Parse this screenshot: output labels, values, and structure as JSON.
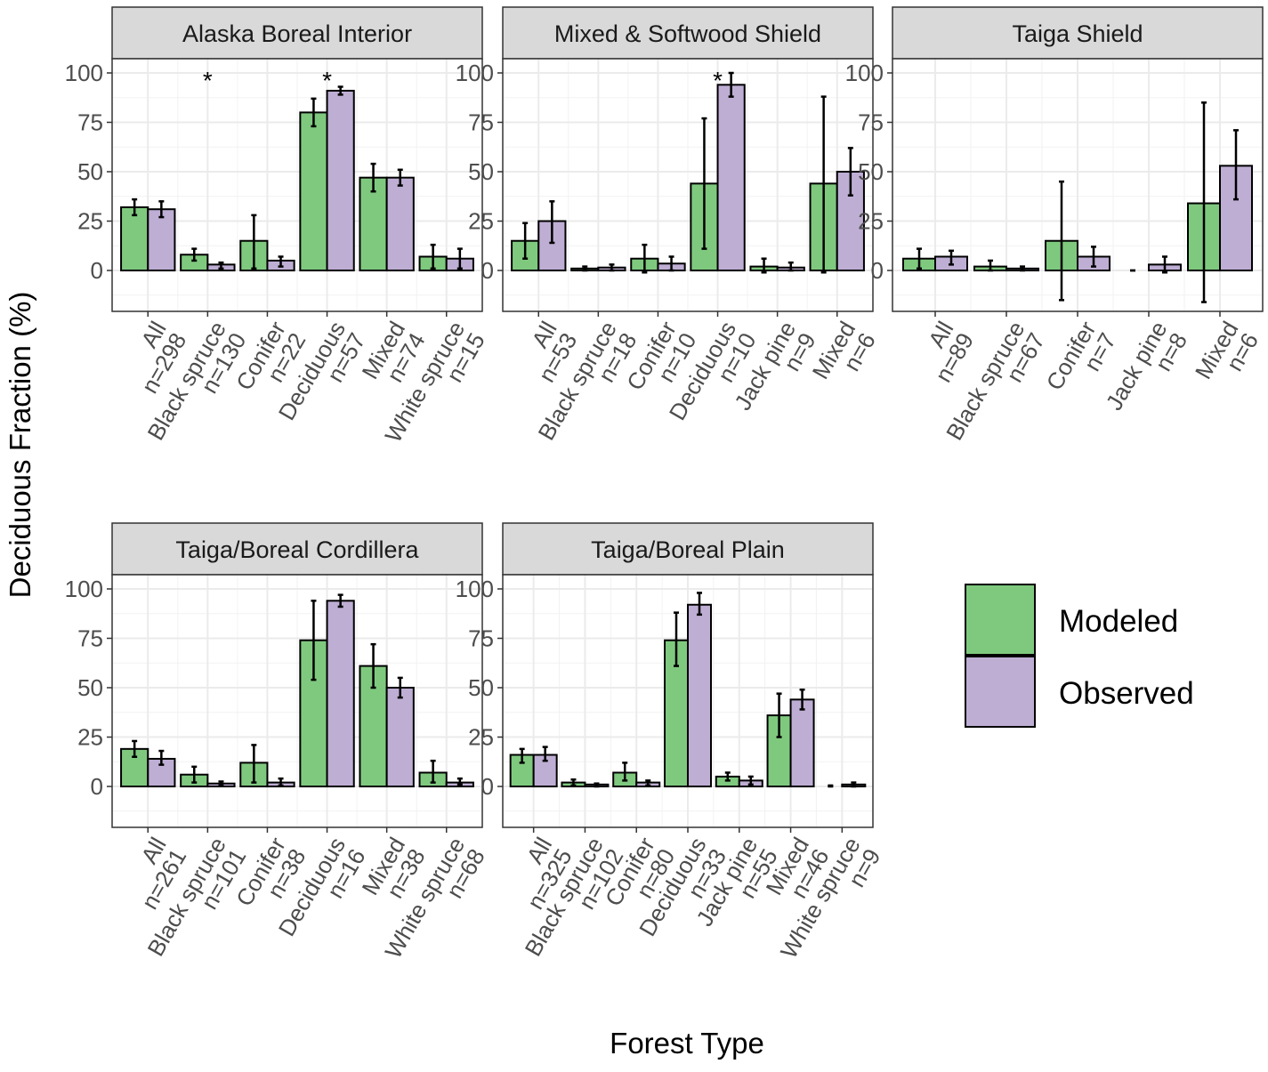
{
  "chart_data": {
    "type": "bar",
    "ylabel": "Deciduous Fraction (%)",
    "xlabel": "Forest Type",
    "ylim": [
      -20.7,
      107.2
    ],
    "yticks": [
      0,
      25,
      50,
      75,
      100
    ],
    "grid": true,
    "legend_placement": "right",
    "colors": {
      "Modeled": "#7FC97F",
      "Observed": "#BEAED4",
      "strip": "#D9D9D9"
    },
    "legend": [
      "Modeled",
      "Observed"
    ],
    "panels": [
      {
        "title": "Alaska Boreal Interior",
        "categories": [
          "All",
          "Black spruce",
          "Conifer",
          "Deciduous",
          "Mixed",
          "White spruce"
        ],
        "n": [
          "n=298",
          "n=130",
          "n=22",
          "n=57",
          "n=74",
          "n=15"
        ],
        "significant": [
          false,
          true,
          false,
          true,
          false,
          false
        ],
        "series": [
          {
            "name": "Modeled",
            "values": [
              32,
              8,
              15,
              80,
              47,
              7
            ],
            "lo": [
              28,
              5,
              1,
              73,
              40,
              1
            ],
            "hi": [
              36,
              11,
              28,
              87,
              54,
              13
            ]
          },
          {
            "name": "Observed",
            "values": [
              31,
              3,
              5,
              91,
              47,
              6
            ],
            "lo": [
              27,
              1,
              2,
              89,
              43,
              1
            ],
            "hi": [
              35,
              4,
              7,
              93,
              51,
              11
            ]
          }
        ]
      },
      {
        "title": "Mixed & Softwood Shield",
        "categories": [
          "All",
          "Black spruce",
          "Conifer",
          "Deciduous",
          "Jack pine",
          "Mixed"
        ],
        "n": [
          "n=53",
          "n=18",
          "n=10",
          "n=10",
          "n=9",
          "n=6"
        ],
        "significant": [
          false,
          false,
          false,
          true,
          false,
          false
        ],
        "series": [
          {
            "name": "Modeled",
            "values": [
              15,
              1,
              6,
              44,
              2,
              44
            ],
            "lo": [
              6,
              0,
              -1,
              11,
              -1,
              -1
            ],
            "hi": [
              24,
              2,
              13,
              77,
              6,
              88
            ]
          },
          {
            "name": "Observed",
            "values": [
              25,
              1.5,
              3.5,
              94,
              1.5,
              50
            ],
            "lo": [
              14,
              0,
              0,
              88,
              0,
              38
            ],
            "hi": [
              35,
              3,
              7,
              100,
              4,
              62
            ]
          }
        ]
      },
      {
        "title": "Taiga Shield",
        "categories": [
          "All",
          "Black spruce",
          "Conifer",
          "Jack pine",
          "Mixed"
        ],
        "n": [
          "n=89",
          "n=67",
          "n=7",
          "n=8",
          "n=6"
        ],
        "significant": [
          false,
          false,
          false,
          false,
          false
        ],
        "series": [
          {
            "name": "Modeled",
            "values": [
              6,
              2,
              15,
              0,
              34
            ],
            "lo": [
              1,
              0,
              -15,
              0,
              -16
            ],
            "hi": [
              11,
              5,
              45,
              0,
              85
            ]
          },
          {
            "name": "Observed",
            "values": [
              7,
              1,
              7,
              3,
              53
            ],
            "lo": [
              3,
              0,
              2,
              -1,
              36
            ],
            "hi": [
              10,
              2,
              12,
              7,
              71
            ]
          }
        ]
      },
      {
        "title": "Taiga/Boreal Cordillera",
        "categories": [
          "All",
          "Black spruce",
          "Conifer",
          "Deciduous",
          "Mixed",
          "White spruce"
        ],
        "n": [
          "n=261",
          "n=101",
          "n=38",
          "n=16",
          "n=38",
          "n=68"
        ],
        "significant": [
          false,
          false,
          false,
          false,
          false,
          false
        ],
        "series": [
          {
            "name": "Modeled",
            "values": [
              19,
              6,
              12,
              74,
              61,
              7
            ],
            "lo": [
              15,
              2,
              2,
              54,
              50,
              2
            ],
            "hi": [
              23,
              10,
              21,
              94,
              72,
              13
            ]
          },
          {
            "name": "Observed",
            "values": [
              14,
              1.5,
              2,
              94,
              50,
              2
            ],
            "lo": [
              11,
              0.5,
              0.5,
              91,
              45,
              1
            ],
            "hi": [
              18,
              2.5,
              4,
              97,
              55,
              4
            ]
          }
        ]
      },
      {
        "title": "Taiga/Boreal Plain",
        "categories": [
          "All",
          "Black spruce",
          "Conifer",
          "Deciduous",
          "Jack pine",
          "Mixed",
          "White spruce"
        ],
        "n": [
          "n=325",
          "n=102",
          "n=80",
          "n=33",
          "n=55",
          "n=46",
          "n=9"
        ],
        "significant": [
          false,
          false,
          false,
          false,
          false,
          false,
          false
        ],
        "series": [
          {
            "name": "Modeled",
            "values": [
              16,
              2,
              7,
              74,
              5,
              36,
              0
            ],
            "lo": [
              12,
              0.5,
              3,
              61,
              3,
              25,
              0
            ],
            "hi": [
              19,
              3.5,
              12,
              88,
              7,
              47,
              0.5
            ]
          },
          {
            "name": "Observed",
            "values": [
              16,
              1,
              2,
              92,
              3,
              44,
              1
            ],
            "lo": [
              13,
              0,
              0.5,
              87,
              1,
              39,
              0
            ],
            "hi": [
              20,
              1.5,
              3,
              98,
              5,
              49,
              2
            ]
          }
        ]
      }
    ]
  }
}
